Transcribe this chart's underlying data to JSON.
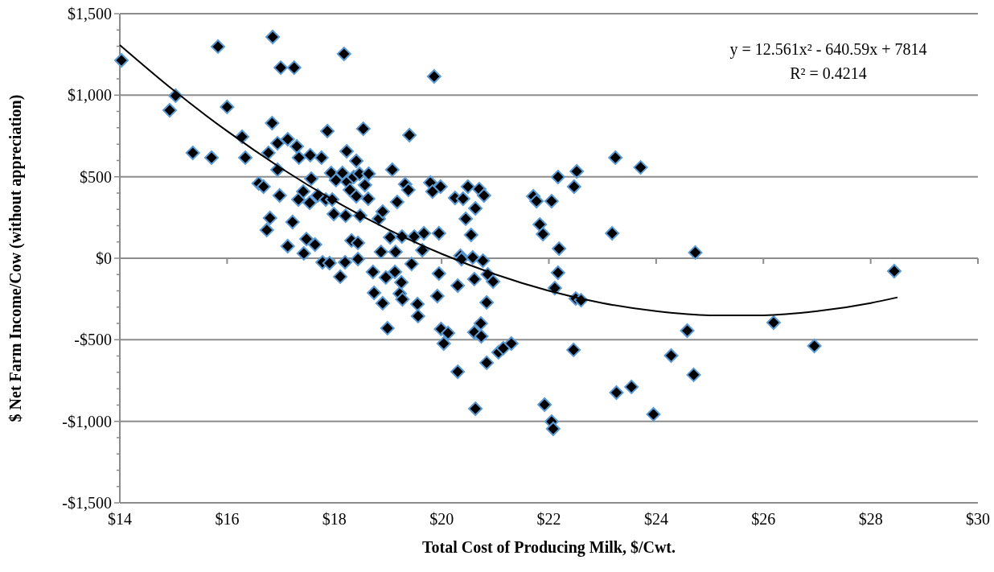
{
  "chart_data": {
    "type": "scatter",
    "xlabel": "Total Cost of Producing Milk, $/Cwt.",
    "ylabel": "$ Net Farm Income/Cow (without appreciation)",
    "xlim": [
      14,
      30
    ],
    "xticks": [
      {
        "value": 14,
        "label": "$14"
      },
      {
        "value": 16,
        "label": "$16"
      },
      {
        "value": 18,
        "label": "$18"
      },
      {
        "value": 20,
        "label": "$20"
      },
      {
        "value": 22,
        "label": "$22"
      },
      {
        "value": 24,
        "label": "$24"
      },
      {
        "value": 26,
        "label": "$26"
      },
      {
        "value": 28,
        "label": "$28"
      },
      {
        "value": 30,
        "label": "$30"
      }
    ],
    "ylim": [
      -1500,
      1500
    ],
    "yticks": [
      {
        "value": -1500,
        "label": "-$1,500"
      },
      {
        "value": -1000,
        "label": "-$1,000"
      },
      {
        "value": -500,
        "label": "-$500"
      },
      {
        "value": 0,
        "label": "$0"
      },
      {
        "value": 500,
        "label": "$500"
      },
      {
        "value": 1000,
        "label": "$1,000"
      },
      {
        "value": 1500,
        "label": "$1,500"
      }
    ],
    "grid": "y",
    "annotations": [
      "y = 12.561x² - 640.59x + 7814",
      "R² = 0.4214"
    ],
    "series": [
      {
        "color": "#000000",
        "marker": "diamond",
        "x": [
          14.03,
          14.93,
          15.04,
          15.36,
          15.71,
          15.83,
          16.0,
          16.28,
          16.34,
          16.59,
          16.68,
          16.74,
          16.8,
          16.77,
          16.84,
          16.85,
          16.94,
          16.94,
          16.98,
          17.0,
          17.13,
          17.13,
          17.22,
          17.25,
          17.3,
          17.33,
          17.34,
          17.42,
          17.43,
          17.48,
          17.54,
          17.57,
          17.55,
          17.64,
          17.69,
          17.76,
          17.78,
          17.84,
          17.87,
          17.91,
          17.94,
          17.96,
          17.99,
          18.03,
          18.11,
          18.15,
          18.18,
          18.21,
          18.2,
          18.23,
          18.24,
          18.29,
          18.32,
          18.36,
          18.41,
          18.41,
          18.44,
          18.44,
          18.47,
          18.48,
          18.54,
          18.57,
          18.63,
          18.64,
          18.72,
          18.74,
          18.83,
          18.87,
          18.9,
          18.9,
          18.96,
          18.99,
          19.04,
          19.08,
          19.13,
          19.14,
          19.17,
          19.22,
          19.25,
          19.26,
          19.27,
          19.32,
          19.38,
          19.4,
          19.44,
          19.49,
          19.55,
          19.56,
          19.64,
          19.67,
          19.79,
          19.83,
          19.86,
          19.92,
          19.95,
          19.95,
          19.98,
          19.99,
          20.04,
          20.12,
          20.25,
          20.3,
          20.3,
          20.35,
          20.37,
          20.4,
          20.45,
          20.49,
          20.55,
          20.58,
          20.61,
          20.61,
          20.63,
          20.63,
          20.7,
          20.73,
          20.74,
          20.77,
          20.79,
          20.84,
          20.86,
          20.84,
          20.96,
          21.06,
          21.15,
          21.3,
          21.71,
          21.77,
          21.83,
          21.89,
          21.92,
          22.05,
          22.08,
          22.05,
          22.11,
          22.17,
          22.17,
          22.19,
          22.46,
          22.47,
          22.52,
          22.5,
          22.6,
          23.24,
          23.18,
          23.26,
          23.54,
          23.71,
          23.95,
          24.28,
          24.58,
          24.7,
          24.73,
          26.19,
          26.95,
          28.44
        ],
        "values": [
          1214,
          908,
          997,
          646,
          617,
          1298,
          928,
          745,
          617,
          459,
          439,
          173,
          247,
          646,
          829,
          1357,
          705,
          543,
          385,
          1169,
          74,
          730,
          222,
          1169,
          686,
          360,
          617,
          409,
          30,
          118,
          340,
          488,
          632,
          84,
          385,
          617,
          -25,
          360,
          780,
          -30,
          523,
          360,
          271,
          479,
          -113,
          523,
          1253,
          261,
          -25,
          656,
          469,
          419,
          109,
          498,
          380,
          597,
          -5,
          94,
          518,
          261,
          794,
          449,
          365,
          518,
          -84,
          -212,
          242,
          39,
          286,
          -276,
          -118,
          -429,
          128,
          543,
          -84,
          39,
          345,
          -217,
          -148,
          133,
          -252,
          454,
          419,
          755,
          -35,
          133,
          -281,
          -355,
          49,
          153,
          464,
          409,
          1115,
          -232,
          -94,
          153,
          439,
          -434,
          -523,
          -459,
          370,
          -168,
          -696,
          15,
          -5,
          365,
          242,
          439,
          143,
          5,
          -454,
          -128,
          306,
          -923,
          424,
          -400,
          -479,
          -15,
          385,
          -641,
          -99,
          -271,
          -143,
          -577,
          -552,
          -523,
          380,
          350,
          207,
          148,
          -898,
          -1002,
          -1046,
          350,
          -183,
          -89,
          498,
          59,
          -562,
          439,
          533,
          -247,
          -257,
          617,
          153,
          -824,
          -789,
          557,
          -957,
          -597,
          -444,
          -715,
          35,
          -395,
          -538,
          -79
        ]
      },
      {
        "type": "line",
        "color": "#000000",
        "marker": "none",
        "line_style": "solid",
        "x": [
          14,
          15,
          16,
          17,
          18,
          19,
          20,
          21,
          22,
          23,
          24,
          25,
          26,
          27,
          28,
          28.5
        ],
        "values": [
          1308,
          1031,
          780,
          554,
          353,
          177,
          27,
          -99,
          -200,
          -275,
          -325,
          -350,
          -350,
          -325,
          -275,
          -240
        ]
      }
    ]
  }
}
